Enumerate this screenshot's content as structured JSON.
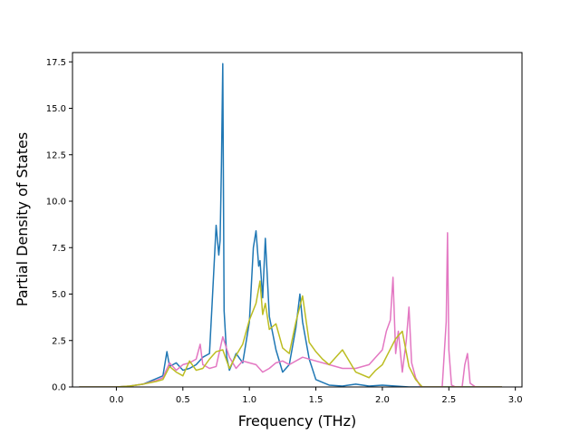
{
  "chart_data": {
    "type": "line",
    "title": "",
    "xlabel": "Frequency (THz)",
    "ylabel": "Partial Density of States",
    "xlim": [
      -0.33,
      3.05
    ],
    "ylim": [
      0,
      18.0
    ],
    "x_ticks": [
      0.0,
      0.5,
      1.0,
      1.5,
      2.0,
      2.5,
      3.0
    ],
    "x_tick_labels": [
      "0.0",
      "0.5",
      "1.0",
      "1.5",
      "2.0",
      "2.5",
      "3.0"
    ],
    "y_ticks": [
      0.0,
      2.5,
      5.0,
      7.5,
      10.0,
      12.5,
      15.0,
      17.5
    ],
    "y_tick_labels": [
      "0.0",
      "2.5",
      "5.0",
      "7.5",
      "10.0",
      "12.5",
      "15.0",
      "17.5"
    ],
    "grid": false,
    "legend": "none",
    "series": [
      {
        "color": "#1f77b4",
        "x": [
          -0.28,
          0.0,
          0.1,
          0.2,
          0.3,
          0.35,
          0.38,
          0.4,
          0.45,
          0.5,
          0.55,
          0.6,
          0.65,
          0.7,
          0.72,
          0.75,
          0.77,
          0.78,
          0.79,
          0.8,
          0.81,
          0.83,
          0.85,
          0.9,
          0.95,
          1.0,
          1.03,
          1.05,
          1.07,
          1.08,
          1.1,
          1.12,
          1.15,
          1.2,
          1.25,
          1.3,
          1.35,
          1.38,
          1.4,
          1.45,
          1.5,
          1.55,
          1.6,
          1.7,
          1.8,
          1.9,
          2.0,
          2.1,
          2.2,
          2.3,
          2.5,
          2.9
        ],
        "y": [
          0.0,
          0.0,
          0.05,
          0.15,
          0.45,
          0.6,
          1.9,
          1.1,
          1.3,
          0.9,
          1.0,
          1.2,
          1.6,
          1.8,
          4.5,
          8.7,
          7.1,
          7.9,
          12.0,
          17.4,
          4.1,
          1.6,
          0.9,
          1.8,
          1.3,
          3.5,
          7.5,
          8.4,
          6.5,
          6.8,
          4.8,
          8.0,
          3.8,
          2.0,
          0.8,
          1.2,
          3.2,
          5.0,
          3.5,
          1.5,
          0.4,
          0.25,
          0.1,
          0.05,
          0.15,
          0.05,
          0.1,
          0.05,
          0.0,
          0.0,
          0.0,
          0.0
        ]
      },
      {
        "color": "#e377c2",
        "x": [
          -0.28,
          0.0,
          0.1,
          0.2,
          0.3,
          0.35,
          0.4,
          0.45,
          0.5,
          0.55,
          0.6,
          0.63,
          0.65,
          0.7,
          0.75,
          0.8,
          0.85,
          0.9,
          0.95,
          1.0,
          1.05,
          1.1,
          1.15,
          1.2,
          1.25,
          1.3,
          1.4,
          1.5,
          1.6,
          1.7,
          1.8,
          1.9,
          2.0,
          2.03,
          2.06,
          2.08,
          2.1,
          2.12,
          2.15,
          2.18,
          2.2,
          2.22,
          2.25,
          2.28,
          2.3,
          2.35,
          2.45,
          2.48,
          2.49,
          2.5,
          2.52,
          2.55,
          2.6,
          2.62,
          2.64,
          2.66,
          2.7,
          2.9
        ],
        "y": [
          0.0,
          0.0,
          0.05,
          0.15,
          0.35,
          0.5,
          1.3,
          0.9,
          1.2,
          1.3,
          1.5,
          2.3,
          1.2,
          1.0,
          1.1,
          2.7,
          1.6,
          1.0,
          1.4,
          1.3,
          1.2,
          0.8,
          1.0,
          1.3,
          1.4,
          1.2,
          1.6,
          1.4,
          1.2,
          1.0,
          1.0,
          1.2,
          2.0,
          3.0,
          3.6,
          5.9,
          1.8,
          3.0,
          0.8,
          2.5,
          4.3,
          1.3,
          0.5,
          0.1,
          0.0,
          0.0,
          0.0,
          3.5,
          8.3,
          2.0,
          0.1,
          0.0,
          0.0,
          1.2,
          1.8,
          0.2,
          0.0,
          0.0
        ]
      },
      {
        "color": "#bcbd22",
        "x": [
          -0.28,
          0.0,
          0.1,
          0.2,
          0.3,
          0.35,
          0.4,
          0.45,
          0.5,
          0.55,
          0.6,
          0.65,
          0.7,
          0.75,
          0.8,
          0.85,
          0.9,
          0.95,
          1.0,
          1.05,
          1.08,
          1.1,
          1.12,
          1.15,
          1.2,
          1.25,
          1.3,
          1.35,
          1.4,
          1.45,
          1.5,
          1.55,
          1.6,
          1.7,
          1.75,
          1.8,
          1.9,
          1.95,
          2.0,
          2.05,
          2.1,
          2.15,
          2.2,
          2.25,
          2.3,
          2.4,
          2.9
        ],
        "y": [
          0.0,
          0.0,
          0.05,
          0.15,
          0.3,
          0.4,
          1.1,
          0.8,
          0.6,
          1.4,
          0.9,
          1.0,
          1.5,
          1.9,
          2.0,
          1.0,
          1.7,
          2.3,
          3.6,
          4.5,
          5.7,
          3.9,
          4.5,
          3.1,
          3.4,
          2.1,
          1.8,
          3.5,
          4.9,
          2.4,
          1.9,
          1.5,
          1.2,
          2.0,
          1.4,
          0.8,
          0.5,
          0.9,
          1.2,
          1.9,
          2.6,
          3.0,
          1.1,
          0.4,
          0.0,
          0.0,
          0.0
        ]
      }
    ]
  }
}
